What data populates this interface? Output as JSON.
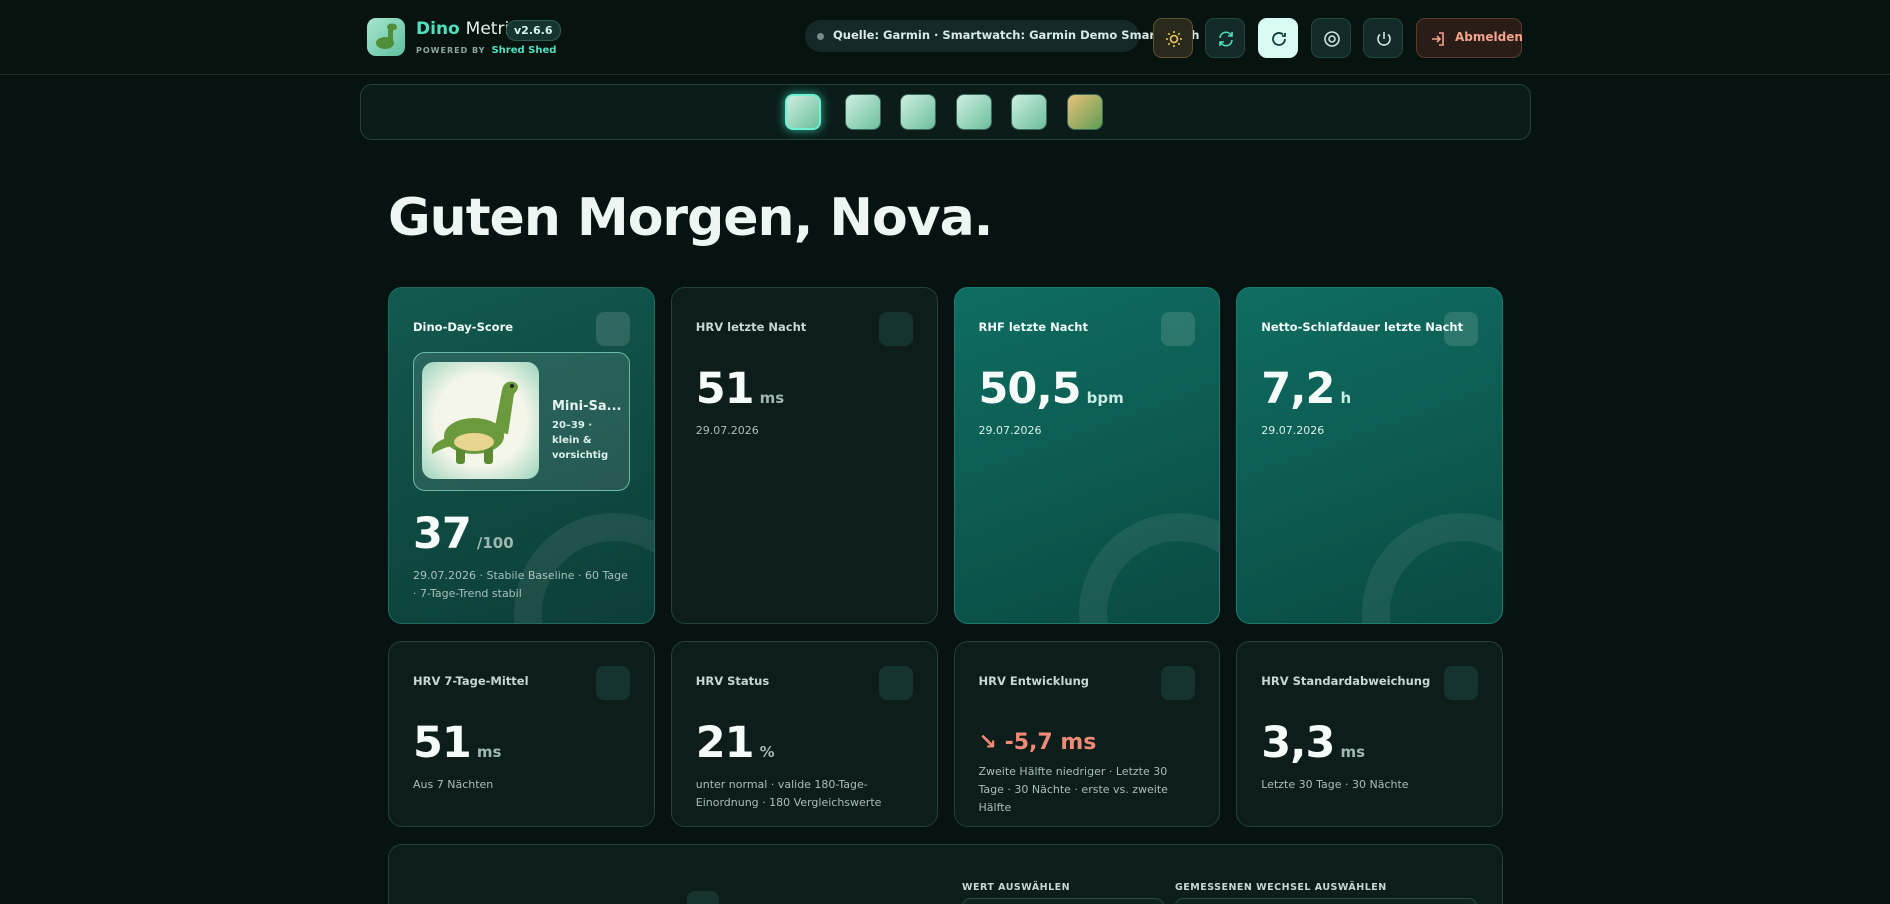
{
  "header": {
    "brand_first": "Dino",
    "brand_second": "Metrix",
    "version": "v2.6.6",
    "powered_by": "POWERED BY",
    "powered_name": "Shred Shed",
    "source": "Quelle: Garmin · Smartwatch: Garmin Demo Smartwatch",
    "logout": "Abmelden"
  },
  "greeting": "Guten Morgen, Nova.",
  "score_card": {
    "title": "Dino-Day-Score",
    "dino_name": "Mini-Sa...",
    "dino_desc": "20–39 · klein & vorsichtig",
    "value": "37",
    "max": "/100",
    "note": "29.07.2026 · Stabile Baseline · 60 Tage · 7-Tage-Trend stabil"
  },
  "cards": [
    {
      "title": "HRV letzte Nacht",
      "value": "51",
      "unit": "ms",
      "note": "29.07.2026"
    },
    {
      "title": "RHF letzte Nacht",
      "value": "50,5",
      "unit": "bpm",
      "note": "29.07.2026"
    },
    {
      "title": "Netto-Schlafdauer letzte Nacht",
      "value": "7,2",
      "unit": "h",
      "note": "29.07.2026"
    },
    {
      "title": "HRV 7-Tage-Mittel",
      "value": "51",
      "unit": "ms",
      "note": "Aus 7 Nächten"
    },
    {
      "title": "HRV Status",
      "value": "21",
      "unit": "%",
      "note": "unter normal · valide 180-Tage-Einordnung · 180 Vergleichswerte"
    },
    {
      "title": "HRV Entwicklung",
      "value": "↘ -5,7 ms",
      "note": "Zweite Hälfte niedriger · Letzte 30 Tage · 30 Nächte · erste vs. zweite Hälfte"
    },
    {
      "title": "HRV Standardabweichung",
      "value": "3,3",
      "unit": "ms",
      "note": "Letzte 30 Tage · 30 Nächte"
    }
  ],
  "panel": {
    "select_value": "WERT AUSWÄHLEN",
    "select_change": "GEMESSENEN WECHSEL AUSWÄHLEN"
  }
}
